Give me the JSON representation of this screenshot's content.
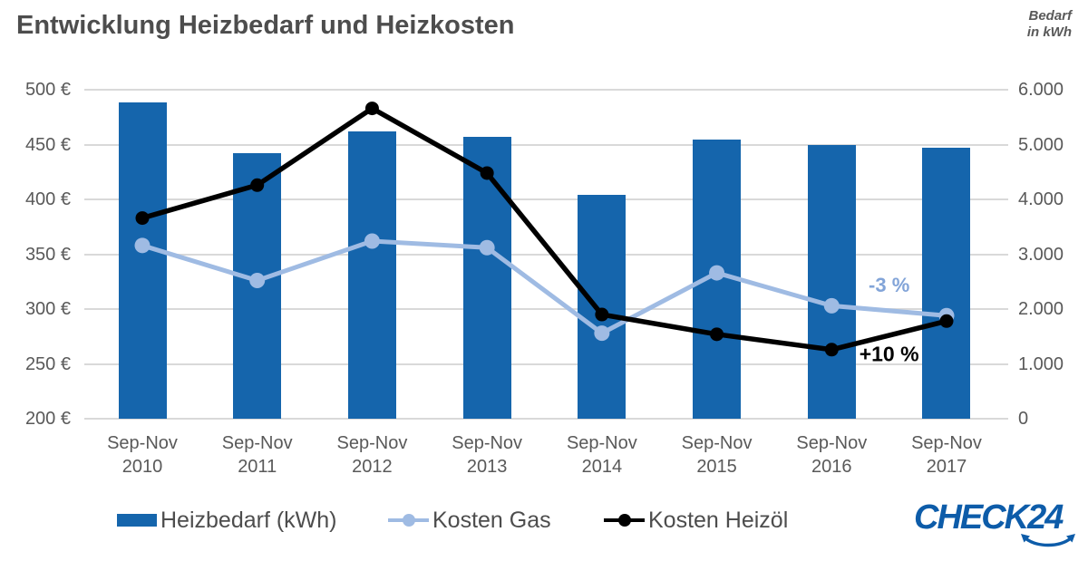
{
  "title": "Entwicklung Heizbedarf und Heizkosten",
  "right_axis_note": {
    "line1": "Bedarf",
    "line2": "in kWh"
  },
  "legend": {
    "items": [
      {
        "label": "Heizbedarf (kWh)",
        "marker": "blue-bar-swatch"
      },
      {
        "label": "Kosten Gas",
        "marker": "lightblue-line-dot"
      },
      {
        "label": "Kosten Heizöl",
        "marker": "black-line-dot"
      }
    ]
  },
  "logo": {
    "text": "CHECK24"
  },
  "colors": {
    "bar_blue": "#1565AC",
    "gas_line": "#9FBBE3",
    "heizoel_line": "#000000",
    "gridline": "#D9D9D9",
    "title_text": "#4D4D4D",
    "axis_text": "#595959",
    "legend_text": "#4D4D4D",
    "annotation_gas": "#82A4D8",
    "logo_blue": "#0D5CA9"
  },
  "chart_data": {
    "type": "bar",
    "subtype": "combo bar + two lines, dual axis",
    "title": "Entwicklung Heizbedarf und Heizkosten",
    "grid": true,
    "legend_position": "bottom",
    "categories": [
      {
        "period": "Sep-Nov",
        "year": "2010"
      },
      {
        "period": "Sep-Nov",
        "year": "2011"
      },
      {
        "period": "Sep-Nov",
        "year": "2012"
      },
      {
        "period": "Sep-Nov",
        "year": "2013"
      },
      {
        "period": "Sep-Nov",
        "year": "2014"
      },
      {
        "period": "Sep-Nov",
        "year": "2015"
      },
      {
        "period": "Sep-Nov",
        "year": "2016"
      },
      {
        "period": "Sep-Nov",
        "year": "2017"
      }
    ],
    "bar_series": {
      "name": "Heizbedarf (kWh)",
      "axis": "right",
      "unit": "kWh",
      "color": "#1565AC",
      "values": [
        5770,
        4840,
        5240,
        5140,
        4080,
        5090,
        4990,
        4950
      ]
    },
    "line_series": [
      {
        "name": "Kosten Gas",
        "axis": "left",
        "unit": "€",
        "color": "#9FBBE3",
        "values": [
          358,
          326,
          362,
          356,
          278,
          333,
          303,
          294
        ]
      },
      {
        "name": "Kosten Heizöl",
        "axis": "left",
        "unit": "€",
        "color": "#000000",
        "values": [
          383,
          413,
          483,
          424,
          295,
          277,
          263,
          289
        ]
      }
    ],
    "left_axis": {
      "min": 200,
      "max": 500,
      "step": 50,
      "ticks": [
        "500 €",
        "450 €",
        "400 €",
        "350 €",
        "300 €",
        "250 €",
        "200 €"
      ]
    },
    "right_axis": {
      "min": 0,
      "max": 6000,
      "step": 1000,
      "ticks": [
        "6.000",
        "5.000",
        "4.000",
        "3.000",
        "2.000",
        "1.000",
        "0"
      ]
    },
    "annotations": [
      {
        "text": "-3 %",
        "series": "Kosten Gas"
      },
      {
        "text": "+10 %",
        "series": "Kosten Heizöl"
      }
    ]
  }
}
